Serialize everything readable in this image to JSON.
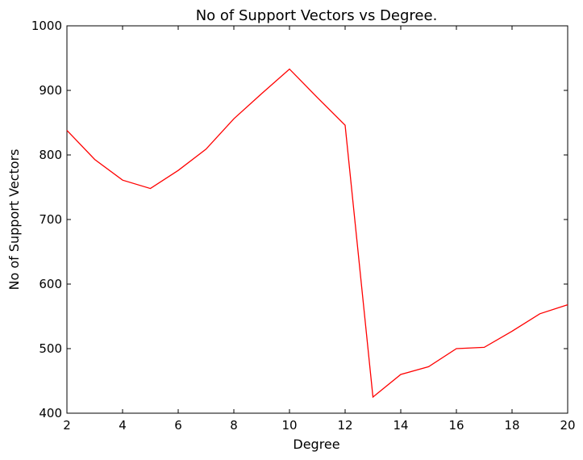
{
  "chart_data": {
    "type": "line",
    "title": "No of Support Vectors vs Degree.",
    "xlabel": "Degree",
    "ylabel": "No of Support Vectors",
    "xlim": [
      2,
      20
    ],
    "ylim": [
      400,
      1000
    ],
    "x_ticks": [
      2,
      4,
      6,
      8,
      10,
      12,
      14,
      16,
      18,
      20
    ],
    "y_ticks": [
      400,
      500,
      600,
      700,
      800,
      900,
      1000
    ],
    "grid": false,
    "legend": "none",
    "series": [
      {
        "color": "#ff0000",
        "x": [
          2,
          3,
          4,
          5,
          6,
          7,
          8,
          9,
          10,
          11,
          12,
          13,
          14,
          15,
          16,
          17,
          18,
          19,
          20
        ],
        "y": [
          838,
          793,
          761,
          748,
          776,
          809,
          856,
          895,
          933,
          889,
          846,
          425,
          460,
          472,
          500,
          502,
          527,
          554,
          568
        ]
      }
    ]
  }
}
